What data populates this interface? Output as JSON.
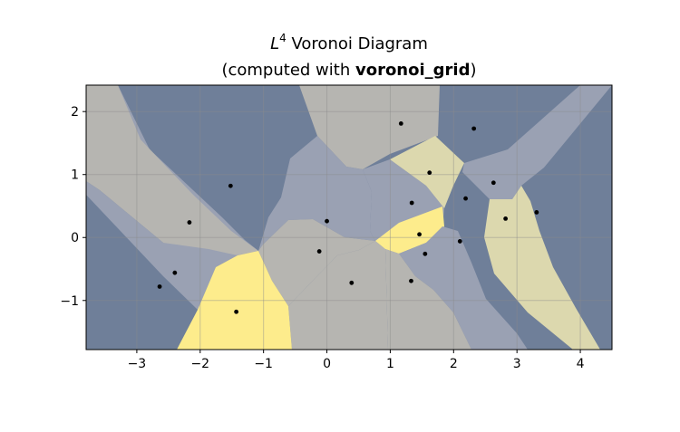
{
  "title": {
    "symbol": "L",
    "exponent": "4",
    "line1_rest": " Voronoi Diagram",
    "line2_prefix": "(computed with ",
    "line2_bold": "voronoi_grid",
    "line2_suffix": ")"
  },
  "colors": {
    "region_dark": "#6f7f99",
    "region_mid": "#9aa1b3",
    "region_gray": "#b6b5b1",
    "region_khaki": "#dcd8ae",
    "region_yellow": "#fdec8c",
    "point": "#000000",
    "grid": "#8c8c8c"
  },
  "chart_data": {
    "type": "scatter",
    "title": "L^4 Voronoi Diagram (computed with voronoi_grid)",
    "xlim": [
      -3.8,
      4.5
    ],
    "ylim": [
      -1.78,
      2.42
    ],
    "xticks": [
      -3,
      -2,
      -1,
      0,
      1,
      2,
      3,
      4
    ],
    "yticks": [
      -1,
      0,
      1,
      2
    ],
    "grid": true,
    "points": [
      {
        "x": 1.17,
        "y": 1.81
      },
      {
        "x": 2.32,
        "y": 1.73
      },
      {
        "x": 1.62,
        "y": 1.03
      },
      {
        "x": 2.63,
        "y": 0.87
      },
      {
        "x": -1.52,
        "y": 0.82
      },
      {
        "x": 2.19,
        "y": 0.62
      },
      {
        "x": 1.34,
        "y": 0.55
      },
      {
        "x": 3.31,
        "y": 0.4
      },
      {
        "x": 2.82,
        "y": 0.3
      },
      {
        "x": -2.17,
        "y": 0.24
      },
      {
        "x": 0.0,
        "y": 0.26
      },
      {
        "x": 1.46,
        "y": 0.05
      },
      {
        "x": 2.1,
        "y": -0.06
      },
      {
        "x": -0.12,
        "y": -0.22
      },
      {
        "x": 1.55,
        "y": -0.26
      },
      {
        "x": -2.4,
        "y": -0.56
      },
      {
        "x": 0.39,
        "y": -0.72
      },
      {
        "x": 1.33,
        "y": -0.69
      },
      {
        "x": -2.64,
        "y": -0.78
      },
      {
        "x": -1.43,
        "y": -1.18
      }
    ]
  }
}
